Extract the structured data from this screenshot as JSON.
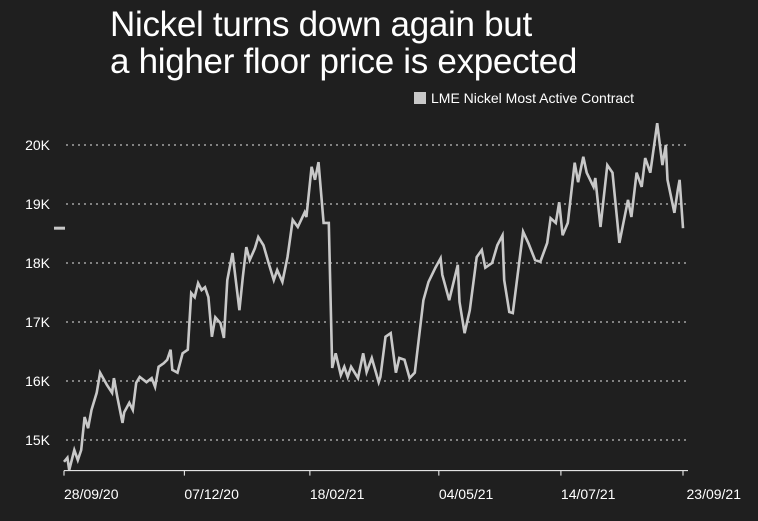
{
  "chart_data": {
    "type": "line",
    "title": "Nickel turns down again but a higher floor price is expected",
    "xlabel": "",
    "ylabel": "",
    "legend": {
      "placement": "top-right",
      "entries": [
        "LME Nickel Most Active Contract"
      ]
    },
    "grid": {
      "horizontal": true,
      "vertical": false,
      "style": "dotted"
    },
    "ylim": [
      14490,
      20400
    ],
    "x_range": [
      "2020-09-28",
      "2021-09-23"
    ],
    "y_ticks": [
      {
        "value": 15000,
        "label": "15K"
      },
      {
        "value": 16000,
        "label": "16K"
      },
      {
        "value": 17000,
        "label": "17K"
      },
      {
        "value": 18000,
        "label": "18K"
      },
      {
        "value": 19000,
        "label": "19K"
      },
      {
        "value": 20000,
        "label": "20K"
      }
    ],
    "x_ticks": [
      {
        "date": "2020-09-28",
        "label": "28/09/20"
      },
      {
        "date": "2020-12-07",
        "label": "07/12/20"
      },
      {
        "date": "2021-02-18",
        "label": "18/02/21"
      },
      {
        "date": "2021-05-04",
        "label": "04/05/21"
      },
      {
        "date": "2021-07-14",
        "label": "14/07/21"
      },
      {
        "date": "2021-09-23",
        "label": "23/09/21"
      }
    ],
    "colors": {
      "background": "#1f1f1f",
      "line": "#c8c8c8",
      "text": "#ffffff"
    },
    "series": [
      {
        "name": "LME Nickel Most Active Contract",
        "points": [
          [
            "2020-09-28",
            14630
          ],
          [
            "2020-09-30",
            14700
          ],
          [
            "2020-10-01",
            14490
          ],
          [
            "2020-10-04",
            14830
          ],
          [
            "2020-10-06",
            14660
          ],
          [
            "2020-10-08",
            14830
          ],
          [
            "2020-10-10",
            15390
          ],
          [
            "2020-10-12",
            15200
          ],
          [
            "2020-10-14",
            15510
          ],
          [
            "2020-10-17",
            15800
          ],
          [
            "2020-10-19",
            16140
          ],
          [
            "2020-10-23",
            15930
          ],
          [
            "2020-10-26",
            15800
          ],
          [
            "2020-10-27",
            16050
          ],
          [
            "2020-10-29",
            15730
          ],
          [
            "2020-11-01",
            15290
          ],
          [
            "2020-11-02",
            15470
          ],
          [
            "2020-11-05",
            15630
          ],
          [
            "2020-11-07",
            15510
          ],
          [
            "2020-11-09",
            15970
          ],
          [
            "2020-11-11",
            16070
          ],
          [
            "2020-11-15",
            15980
          ],
          [
            "2020-11-18",
            16050
          ],
          [
            "2020-11-20",
            15900
          ],
          [
            "2020-11-22",
            16240
          ],
          [
            "2020-11-25",
            16300
          ],
          [
            "2020-11-27",
            16360
          ],
          [
            "2020-11-29",
            16530
          ],
          [
            "2020-11-30",
            16190
          ],
          [
            "2020-12-03",
            16140
          ],
          [
            "2020-12-06",
            16470
          ],
          [
            "2020-12-09",
            16530
          ],
          [
            "2020-12-11",
            17490
          ],
          [
            "2020-12-13",
            17420
          ],
          [
            "2020-12-15",
            17660
          ],
          [
            "2020-12-17",
            17540
          ],
          [
            "2020-12-19",
            17590
          ],
          [
            "2020-12-21",
            17420
          ],
          [
            "2020-12-23",
            16750
          ],
          [
            "2020-12-25",
            17080
          ],
          [
            "2020-12-28",
            16980
          ],
          [
            "2020-12-30",
            16730
          ],
          [
            "2021-01-01",
            17710
          ],
          [
            "2021-01-04",
            18170
          ],
          [
            "2021-01-08",
            17200
          ],
          [
            "2021-01-10",
            17760
          ],
          [
            "2021-01-12",
            18270
          ],
          [
            "2021-01-14",
            18050
          ],
          [
            "2021-01-17",
            18250
          ],
          [
            "2021-01-19",
            18440
          ],
          [
            "2021-01-22",
            18300
          ],
          [
            "2021-01-25",
            18000
          ],
          [
            "2021-01-28",
            17710
          ],
          [
            "2021-01-30",
            17880
          ],
          [
            "2021-02-02",
            17680
          ],
          [
            "2021-02-05",
            18100
          ],
          [
            "2021-02-08",
            18730
          ],
          [
            "2021-02-11",
            18610
          ],
          [
            "2021-02-15",
            18860
          ],
          [
            "2021-02-16",
            18780
          ],
          [
            "2021-02-19",
            19630
          ],
          [
            "2021-02-21",
            19410
          ],
          [
            "2021-02-23",
            19710
          ],
          [
            "2021-02-26",
            18680
          ],
          [
            "2021-03-01",
            18680
          ],
          [
            "2021-03-03",
            16220
          ],
          [
            "2021-03-05",
            16470
          ],
          [
            "2021-03-08",
            16100
          ],
          [
            "2021-03-10",
            16240
          ],
          [
            "2021-03-12",
            16070
          ],
          [
            "2021-03-14",
            16240
          ],
          [
            "2021-03-18",
            16050
          ],
          [
            "2021-03-21",
            16470
          ],
          [
            "2021-03-23",
            16150
          ],
          [
            "2021-03-26",
            16390
          ],
          [
            "2021-03-30",
            15980
          ],
          [
            "2021-03-31",
            16070
          ],
          [
            "2021-04-03",
            16750
          ],
          [
            "2021-04-06",
            16810
          ],
          [
            "2021-04-09",
            16140
          ],
          [
            "2021-04-11",
            16390
          ],
          [
            "2021-04-14",
            16360
          ],
          [
            "2021-04-17",
            16050
          ],
          [
            "2021-04-20",
            16140
          ],
          [
            "2021-04-25",
            17370
          ],
          [
            "2021-04-28",
            17680
          ],
          [
            "2021-05-02",
            17920
          ],
          [
            "2021-05-05",
            18080
          ],
          [
            "2021-05-06",
            17800
          ],
          [
            "2021-05-10",
            17370
          ],
          [
            "2021-05-15",
            17970
          ],
          [
            "2021-05-16",
            17340
          ],
          [
            "2021-05-19",
            16810
          ],
          [
            "2021-05-22",
            17200
          ],
          [
            "2021-05-26",
            18100
          ],
          [
            "2021-05-29",
            18220
          ],
          [
            "2021-05-31",
            17920
          ],
          [
            "2021-06-04",
            18000
          ],
          [
            "2021-06-07",
            18300
          ],
          [
            "2021-06-10",
            18470
          ],
          [
            "2021-06-11",
            17710
          ],
          [
            "2021-06-14",
            17170
          ],
          [
            "2021-06-16",
            17150
          ],
          [
            "2021-06-22",
            18530
          ],
          [
            "2021-06-25",
            18340
          ],
          [
            "2021-06-29",
            18050
          ],
          [
            "2021-07-02",
            18020
          ],
          [
            "2021-07-06",
            18340
          ],
          [
            "2021-07-08",
            18760
          ],
          [
            "2021-07-11",
            18680
          ],
          [
            "2021-07-13",
            19030
          ],
          [
            "2021-07-15",
            18470
          ],
          [
            "2021-07-18",
            18680
          ],
          [
            "2021-07-22",
            19700
          ],
          [
            "2021-07-24",
            19370
          ],
          [
            "2021-07-27",
            19800
          ],
          [
            "2021-07-29",
            19530
          ],
          [
            "2021-08-02",
            19290
          ],
          [
            "2021-08-03",
            19440
          ],
          [
            "2021-08-06",
            18610
          ],
          [
            "2021-08-10",
            19660
          ],
          [
            "2021-08-13",
            19530
          ],
          [
            "2021-08-17",
            18340
          ],
          [
            "2021-08-22",
            19070
          ],
          [
            "2021-08-24",
            18780
          ],
          [
            "2021-08-27",
            19530
          ],
          [
            "2021-08-30",
            19290
          ],
          [
            "2021-09-01",
            19780
          ],
          [
            "2021-09-04",
            19530
          ],
          [
            "2021-09-08",
            20370
          ],
          [
            "2021-09-11",
            19660
          ],
          [
            "2021-09-13",
            20000
          ],
          [
            "2021-09-14",
            19410
          ],
          [
            "2021-09-18",
            18850
          ],
          [
            "2021-09-20",
            19240
          ],
          [
            "2021-09-21",
            19410
          ],
          [
            "2021-09-23",
            18590
          ]
        ]
      }
    ]
  },
  "header": {
    "title_line1": "Nickel turns down again but",
    "title_line2": "a higher floor price is expected"
  },
  "legend": {
    "label": "LME Nickel Most Active Contract"
  }
}
